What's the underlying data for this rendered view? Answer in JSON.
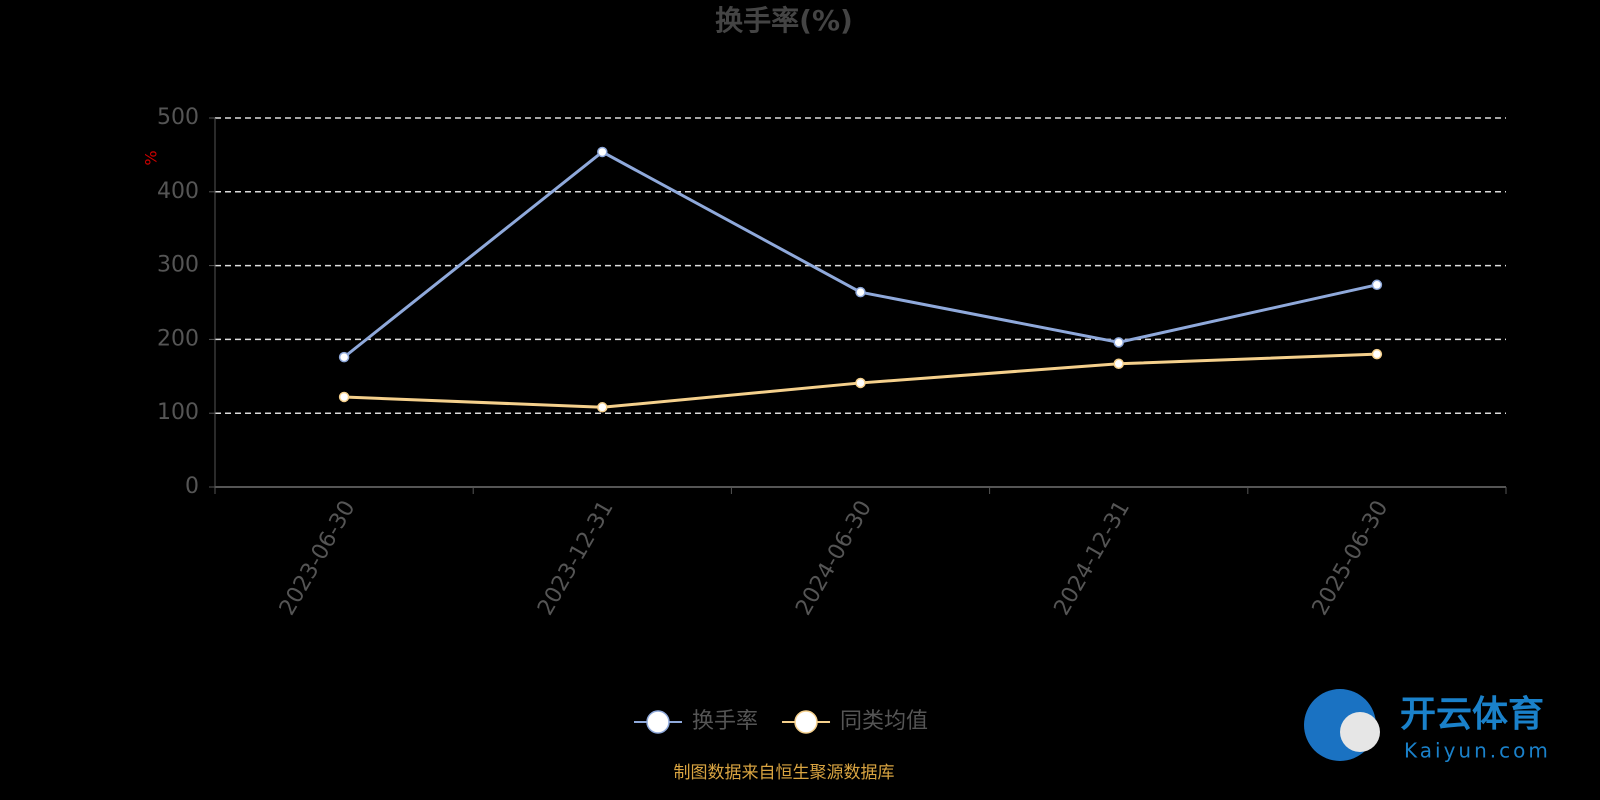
{
  "chart_data": {
    "type": "line",
    "title": "换手率(%)",
    "y_unit": "%",
    "categories": [
      "2023-06-30",
      "2023-12-31",
      "2024-06-30",
      "2024-12-31",
      "2025-06-30"
    ],
    "series": [
      {
        "name": "换手率",
        "color": "#8fa9db",
        "values": [
          176,
          454,
          264,
          196,
          274
        ]
      },
      {
        "name": "同类均值",
        "color": "#f5d08c",
        "values": [
          122,
          108,
          141,
          167,
          180
        ]
      }
    ],
    "ylim": [
      0,
      500
    ],
    "yticks": [
      0,
      100,
      200,
      300,
      400,
      500
    ],
    "grid": true,
    "source": "制图数据来自恒生聚源数据库"
  },
  "watermark": {
    "name": "开云体育",
    "site": "Kaiyun.com"
  }
}
